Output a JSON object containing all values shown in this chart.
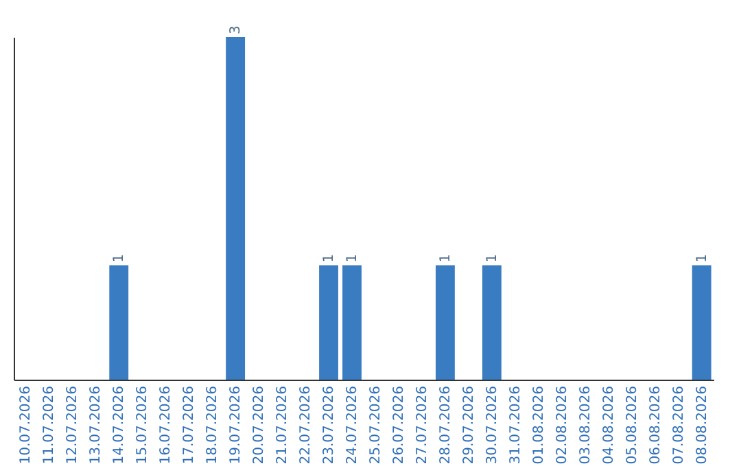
{
  "chart_data": {
    "type": "bar",
    "categories": [
      "10.07.2026",
      "11.07.2026",
      "12.07.2026",
      "13.07.2026",
      "14.07.2026",
      "15.07.2026",
      "16.07.2026",
      "17.07.2026",
      "18.07.2026",
      "19.07.2026",
      "20.07.2026",
      "21.07.2026",
      "22.07.2026",
      "23.07.2026",
      "24.07.2026",
      "25.07.2026",
      "26.07.2026",
      "27.07.2026",
      "28.07.2026",
      "29.07.2026",
      "30.07.2026",
      "31.07.2026",
      "01.08.2026",
      "02.08.2026",
      "03.08.2026",
      "04.08.2026",
      "05.08.2026",
      "06.08.2026",
      "07.08.2026",
      "08.08.2026"
    ],
    "values": [
      0,
      0,
      0,
      0,
      1,
      0,
      0,
      0,
      0,
      3,
      0,
      0,
      0,
      1,
      1,
      0,
      0,
      0,
      1,
      0,
      1,
      0,
      0,
      0,
      0,
      0,
      0,
      0,
      0,
      1
    ],
    "value_labels": [
      null,
      null,
      null,
      null,
      "1",
      null,
      null,
      null,
      null,
      "3",
      null,
      null,
      null,
      "1",
      "1",
      null,
      null,
      null,
      "1",
      null,
      "1",
      null,
      null,
      null,
      null,
      null,
      null,
      null,
      null,
      "1"
    ],
    "color": "#3a7cc1",
    "ylim": [
      0,
      3
    ],
    "tick_labels": "x",
    "grid": false
  }
}
